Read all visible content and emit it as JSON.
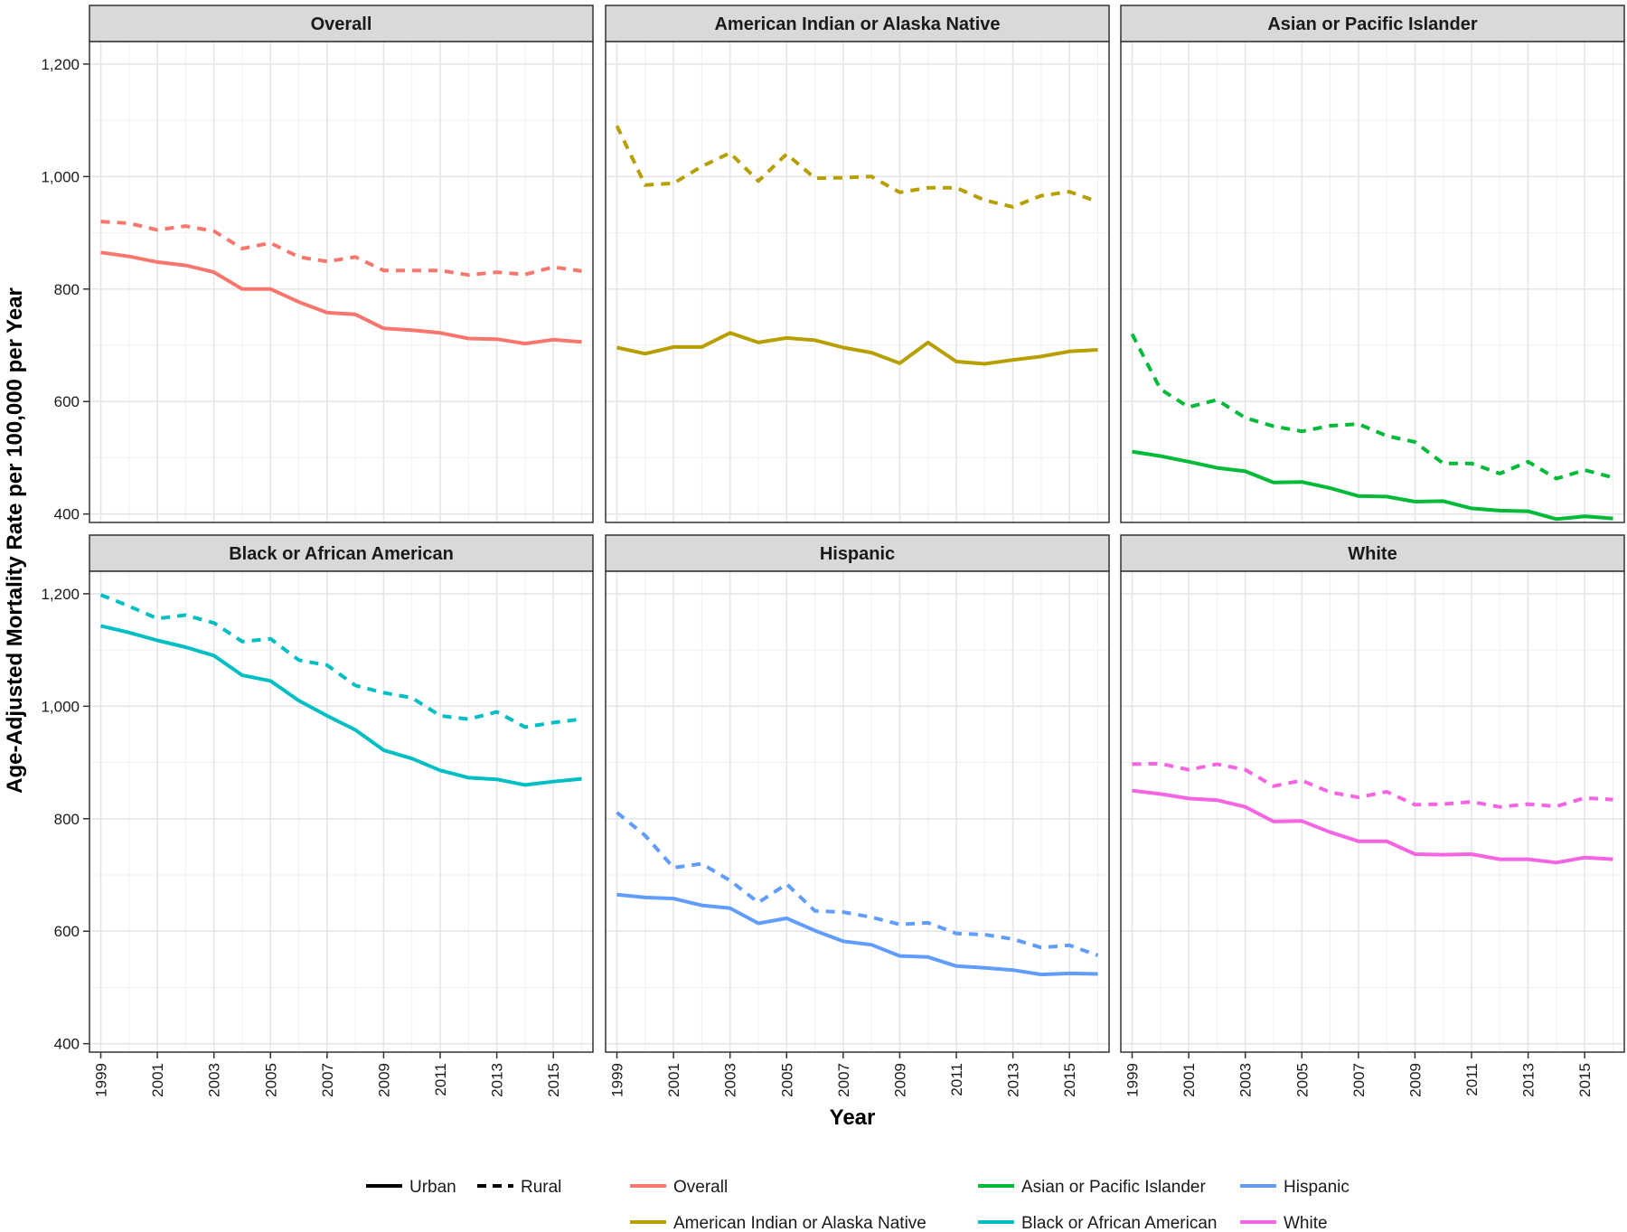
{
  "chart_data": {
    "type": "line",
    "xlabel": "Year",
    "ylabel": "Age-Adjusted Mortality Rate per 100,000 per Year",
    "ylim": [
      385,
      1240
    ],
    "yticks": [
      400,
      600,
      800,
      1000,
      1200
    ],
    "ytick_labels": [
      "400",
      "600",
      "800",
      "1,000",
      "1,200"
    ],
    "xlim": [
      1998.6,
      2016.4
    ],
    "xticks": [
      1999,
      2001,
      2003,
      2005,
      2007,
      2009,
      2011,
      2013,
      2015
    ],
    "xtick_labels": [
      "1999",
      "2001",
      "2003",
      "2005",
      "2007",
      "2009",
      "2011",
      "2013",
      "2015"
    ],
    "years": [
      1999,
      2000,
      2001,
      2002,
      2003,
      2004,
      2005,
      2006,
      2007,
      2008,
      2009,
      2010,
      2011,
      2012,
      2013,
      2014,
      2015,
      2016
    ],
    "panels": [
      {
        "title": "Overall",
        "color": "#F8766D",
        "urban": [
          865,
          858,
          848,
          842,
          830,
          800,
          800,
          777,
          758,
          755,
          730,
          727,
          722,
          712,
          711,
          703,
          710,
          706
        ],
        "rural": [
          920,
          917,
          905,
          912,
          903,
          872,
          882,
          857,
          849,
          857,
          833,
          833,
          833,
          825,
          830,
          826,
          839,
          832
        ]
      },
      {
        "title": "American Indian or Alaska Native",
        "color": "#B79F00",
        "urban": [
          696,
          685,
          697,
          697,
          722,
          705,
          713,
          709,
          696,
          687,
          668,
          705,
          671,
          667,
          674,
          680,
          689,
          692
        ],
        "rural": [
          1090,
          985,
          988,
          1018,
          1042,
          992,
          1040,
          997,
          998,
          1000,
          972,
          980,
          980,
          958,
          946,
          966,
          973,
          955
        ]
      },
      {
        "title": "Asian or Pacific Islander",
        "color": "#00BA38",
        "urban": [
          511,
          503,
          493,
          482,
          476,
          456,
          457,
          446,
          432,
          431,
          422,
          423,
          410,
          406,
          405,
          391,
          396,
          392
        ],
        "rural": [
          720,
          622,
          590,
          603,
          571,
          556,
          547,
          557,
          560,
          539,
          528,
          490,
          490,
          472,
          493,
          463,
          478,
          465
        ]
      },
      {
        "title": "Black or African American",
        "color": "#00BFC4",
        "urban": [
          1143,
          1131,
          1117,
          1105,
          1090,
          1055,
          1045,
          1010,
          983,
          958,
          922,
          907,
          886,
          873,
          870,
          860,
          866,
          871
        ],
        "rural": [
          1198,
          1178,
          1156,
          1162,
          1148,
          1115,
          1120,
          1082,
          1073,
          1037,
          1024,
          1015,
          983,
          977,
          990,
          963,
          971,
          977
        ]
      },
      {
        "title": "Hispanic",
        "color": "#619CFF",
        "urban": [
          665,
          660,
          658,
          646,
          641,
          614,
          623,
          601,
          582,
          576,
          556,
          554,
          538,
          535,
          531,
          523,
          525,
          524
        ],
        "rural": [
          811,
          770,
          713,
          720,
          690,
          651,
          684,
          636,
          634,
          625,
          612,
          615,
          596,
          594,
          586,
          571,
          575,
          557
        ]
      },
      {
        "title": "White",
        "color": "#F564E3",
        "urban": [
          850,
          844,
          836,
          833,
          821,
          795,
          796,
          776,
          760,
          760,
          737,
          736,
          737,
          728,
          728,
          722,
          731,
          728
        ],
        "rural": [
          897,
          898,
          887,
          897,
          887,
          858,
          868,
          847,
          838,
          848,
          825,
          826,
          830,
          821,
          826,
          822,
          837,
          834
        ]
      }
    ],
    "legend": {
      "position": "bottom",
      "linetype": [
        {
          "label": "Urban",
          "style": "solid"
        },
        {
          "label": "Rural",
          "style": "dashed"
        }
      ],
      "groups": [
        {
          "label": "Overall",
          "color": "#F8766D"
        },
        {
          "label": "American Indian or Alaska Native",
          "color": "#B79F00"
        },
        {
          "label": "Asian or Pacific Islander",
          "color": "#00BA38"
        },
        {
          "label": "Black or African American",
          "color": "#00BFC4"
        },
        {
          "label": "Hispanic",
          "color": "#619CFF"
        },
        {
          "label": "White",
          "color": "#F564E3"
        }
      ]
    }
  }
}
